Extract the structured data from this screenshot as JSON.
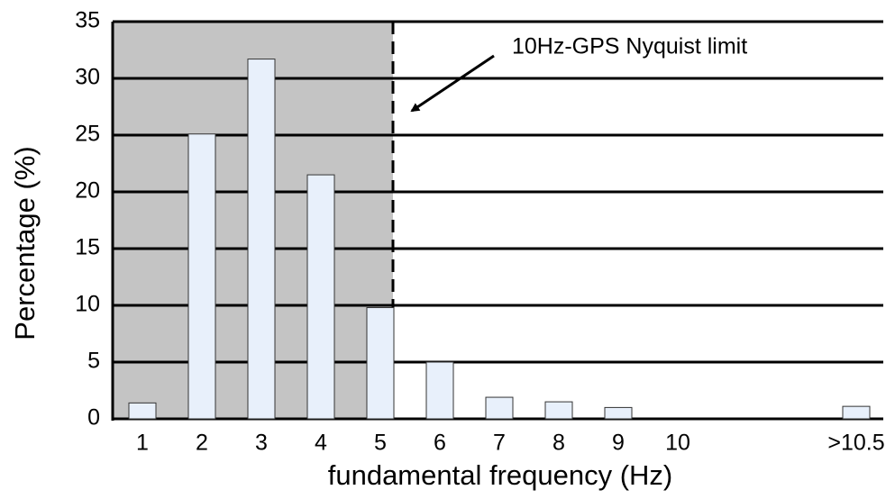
{
  "chart_data": {
    "type": "bar",
    "annotation": "10Hz-GPS Nyquist limit",
    "xlabel": "fundamental frequency (Hz)",
    "ylabel": "Percentage (%)",
    "categories": [
      "1",
      "2",
      "3",
      "4",
      "5",
      "6",
      "7",
      "8",
      "9",
      "10",
      null,
      null,
      ">10.5"
    ],
    "values": [
      1.4,
      25.1,
      31.7,
      21.5,
      9.8,
      5.0,
      1.9,
      1.5,
      1.0,
      0,
      null,
      null,
      1.1
    ],
    "color": "#e8f0fb",
    "ylim": [
      0,
      35
    ],
    "yticks": [
      0,
      5,
      10,
      15,
      20,
      25,
      30,
      35
    ],
    "grid": true
  }
}
